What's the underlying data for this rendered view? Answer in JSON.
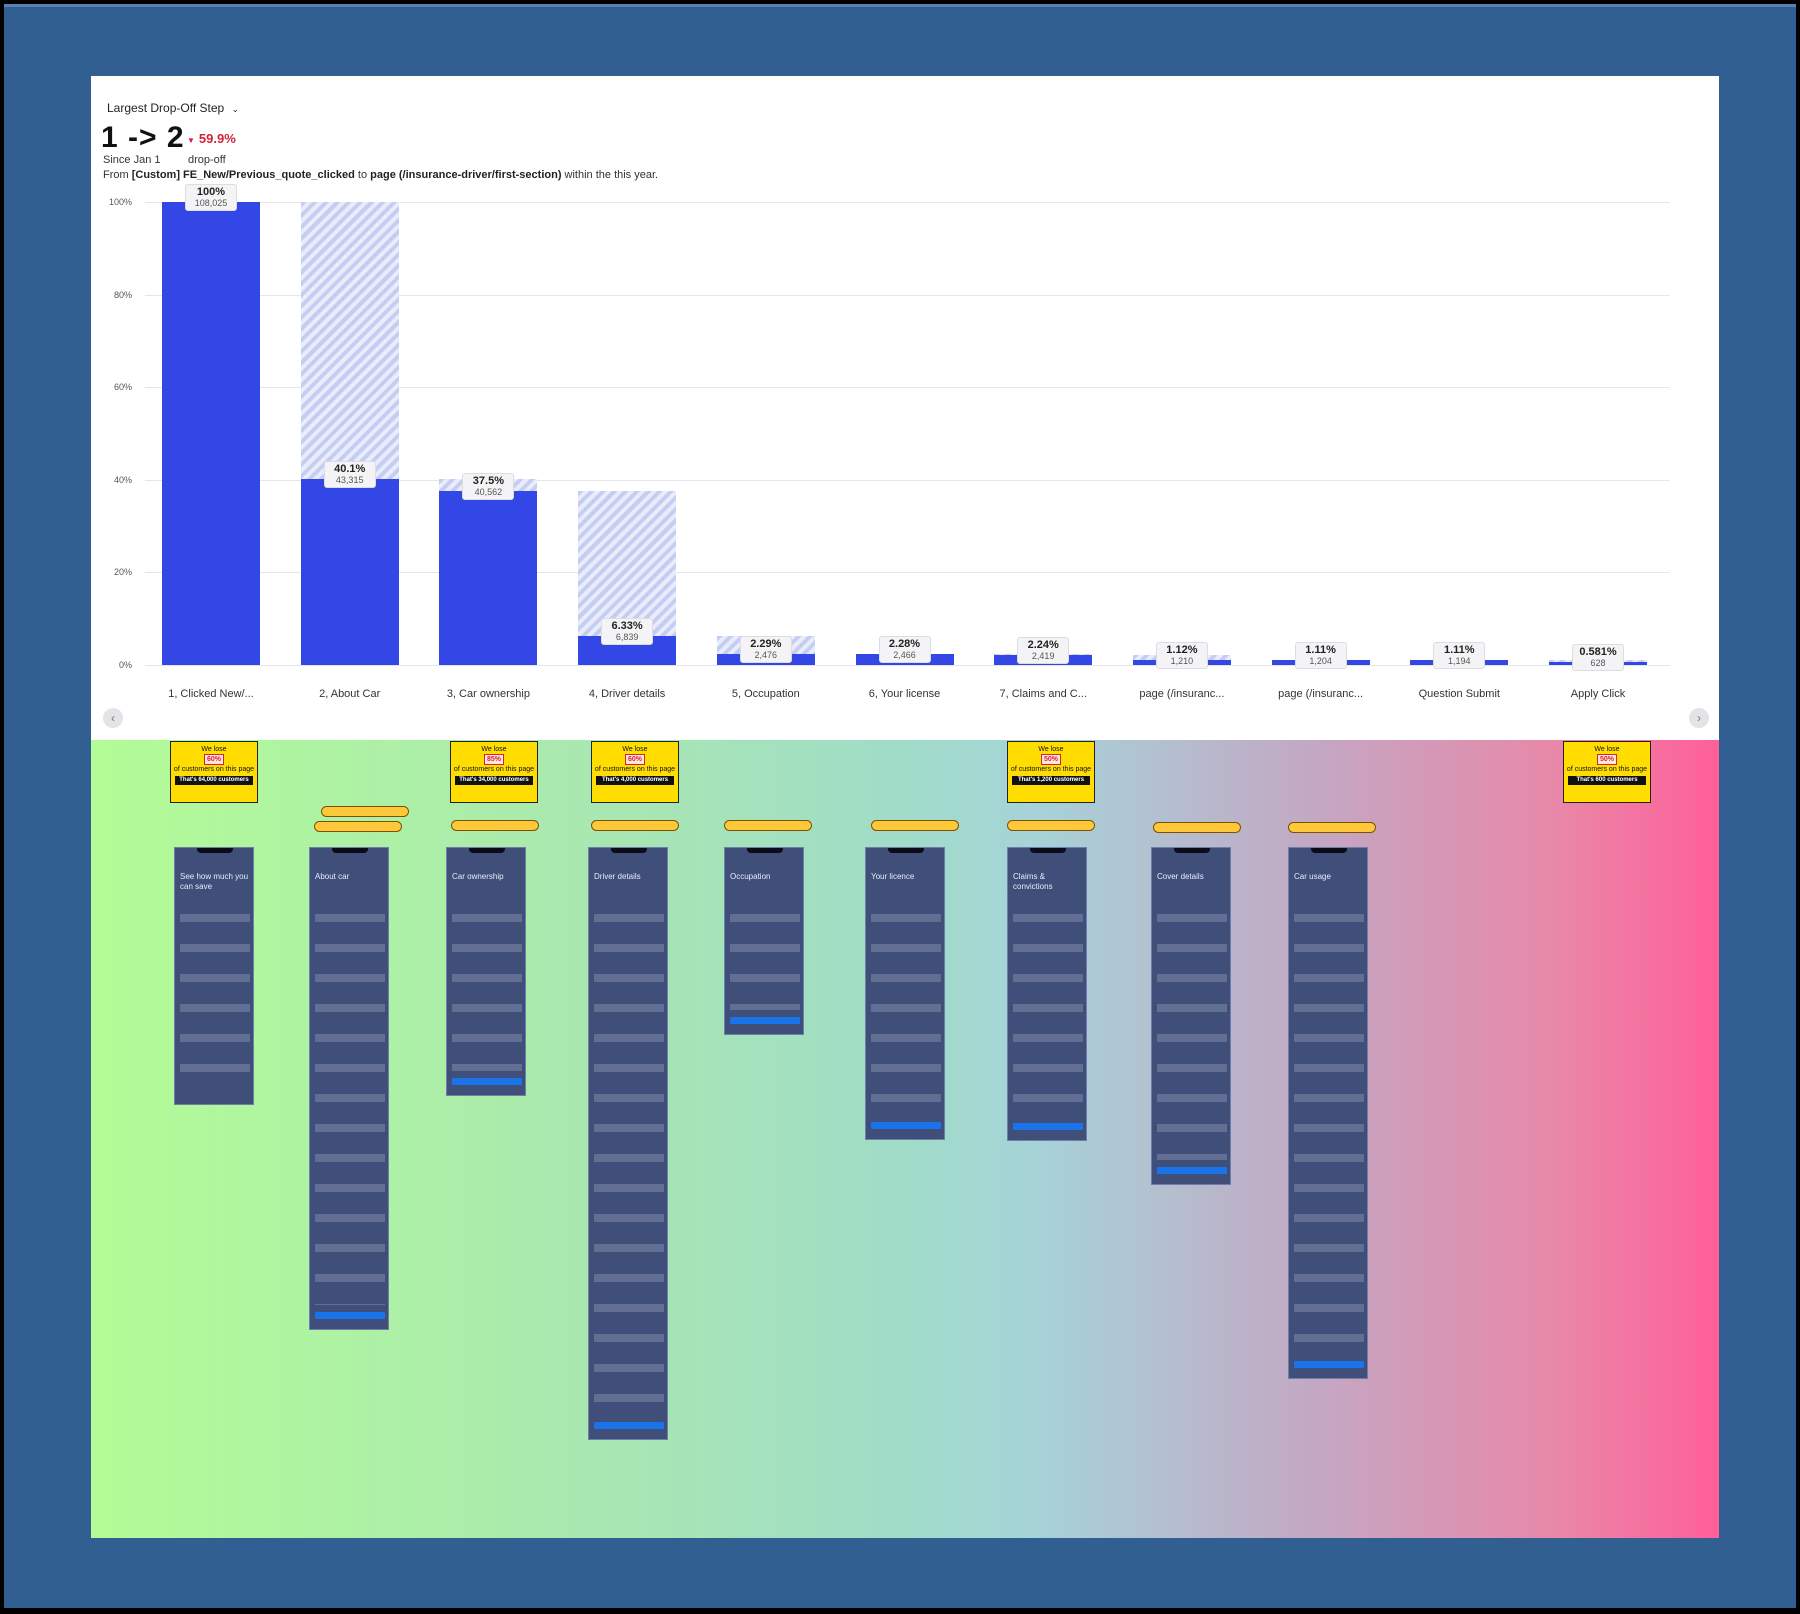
{
  "header": {
    "selector_label": "Largest Drop-Off Step",
    "steps": "1 -> 2",
    "dropoff_pct": "59.9%",
    "since": "Since Jan 1",
    "dropoff_label": "drop-off",
    "from_prefix": "From ",
    "from_event": "[Custom] FE_New/Previous_quote_clicked",
    "from_mid": " to ",
    "from_page": "page (/insurance-driver/first-section)",
    "from_suffix": " within the this year."
  },
  "chart_data": {
    "type": "bar",
    "categories": [
      "1, Clicked New/...",
      "2, About Car",
      "3, Car ownership",
      "4, Driver details",
      "5, Occupation",
      "6, Your license",
      "7, Claims and C...",
      "page (/insuranc...",
      "page (/insuranc...",
      "Question Submit",
      "Apply Click"
    ],
    "values": [
      100,
      40.1,
      37.5,
      6.33,
      2.29,
      2.28,
      2.24,
      1.12,
      1.11,
      1.11,
      0.581
    ],
    "prev_values": [
      100,
      100,
      40.1,
      37.5,
      6.33,
      2.29,
      2.28,
      2.24,
      1.12,
      1.11,
      1.11
    ],
    "value_labels": [
      "100%",
      "40.1%",
      "37.5%",
      "6.33%",
      "2.29%",
      "2.28%",
      "2.24%",
      "1.12%",
      "1.11%",
      "1.11%",
      "0.581%"
    ],
    "counts": [
      "108,025",
      "43,315",
      "40,562",
      "6,839",
      "2,476",
      "2,466",
      "2,419",
      "1,210",
      "1,204",
      "1,194",
      "628"
    ],
    "yticks": [
      "100%",
      "80%",
      "60%",
      "40%",
      "20%",
      "0%"
    ],
    "ylim": [
      0,
      100
    ],
    "grid": true,
    "colors": {
      "bar": "#3346e6",
      "dropped": "#c6cdf3"
    }
  },
  "nav": {
    "prev": "‹",
    "next": "›"
  },
  "notes": [
    {
      "pct": "60%",
      "total": "That's 64,000 customers"
    },
    {
      "pct": "85%",
      "total": "That's 34,000 customers"
    },
    {
      "pct": "60%",
      "total": "That's 4,000 customers"
    },
    {
      "pct": "50%",
      "total": "That's 1,200 customers"
    },
    {
      "pct": "50%",
      "total": "That's 600 customers"
    }
  ],
  "note_text": {
    "we_lose": "We lose",
    "of_customers": "of customers on this page"
  },
  "screens": [
    {
      "title": "See how much you can save"
    },
    {
      "title": "About car"
    },
    {
      "title": "Car ownership"
    },
    {
      "title": "Driver details"
    },
    {
      "title": "Occupation"
    },
    {
      "title": "Your licence"
    },
    {
      "title": "Claims & convictions"
    },
    {
      "title": "Cover details"
    },
    {
      "title": "Car usage"
    }
  ],
  "continue_label": "Continue"
}
